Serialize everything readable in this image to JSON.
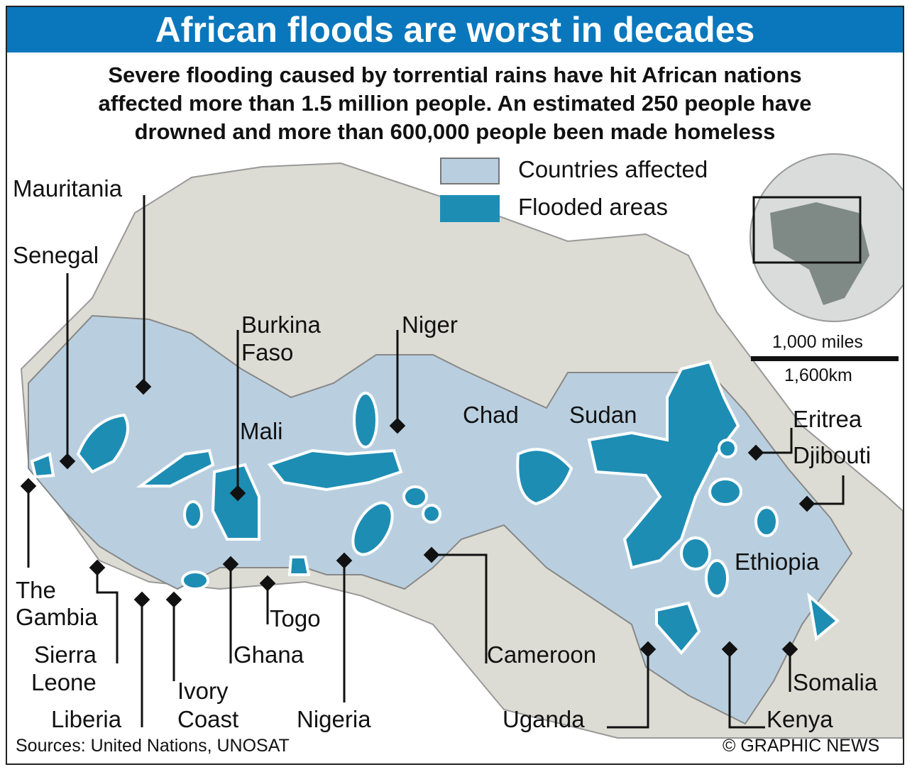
{
  "title": "African floods are worst in decades",
  "subtitle": [
    "Severe flooding caused by torrential rains have hit African nations",
    "affected more than 1.5 million people. An estimated 250 people have",
    "drowned and more than 600,000 people been made homeless"
  ],
  "legend": {
    "affected": "Countries affected",
    "flooded": "Flooded areas"
  },
  "colors": {
    "title_bar": "#0a77bd",
    "affected": "#b9cfe0",
    "flooded": "#1e8db3",
    "land": "#dcdcd4"
  },
  "scale": {
    "miles": "1,000 miles",
    "km": "1,600km"
  },
  "labels": {
    "mauritania": "Mauritania",
    "senegal": "Senegal",
    "burkina_1": "Burkina",
    "burkina_2": "Faso",
    "niger": "Niger",
    "mali": "Mali",
    "chad": "Chad",
    "sudan": "Sudan",
    "eritrea": "Eritrea",
    "djibouti": "Djibouti",
    "ethiopia": "Ethiopia",
    "gambia_1": "The",
    "gambia_2": "Gambia",
    "sierra_1": "Sierra",
    "sierra_2": "Leone",
    "liberia": "Liberia",
    "ivory_1": "Ivory",
    "ivory_2": "Coast",
    "ghana": "Ghana",
    "togo": "Togo",
    "nigeria": "Nigeria",
    "cameroon": "Cameroon",
    "uganda": "Uganda",
    "kenya": "Kenya",
    "somalia": "Somalia"
  },
  "source": "Sources: United Nations, UNOSAT",
  "credit": "© GRAPHIC NEWS"
}
